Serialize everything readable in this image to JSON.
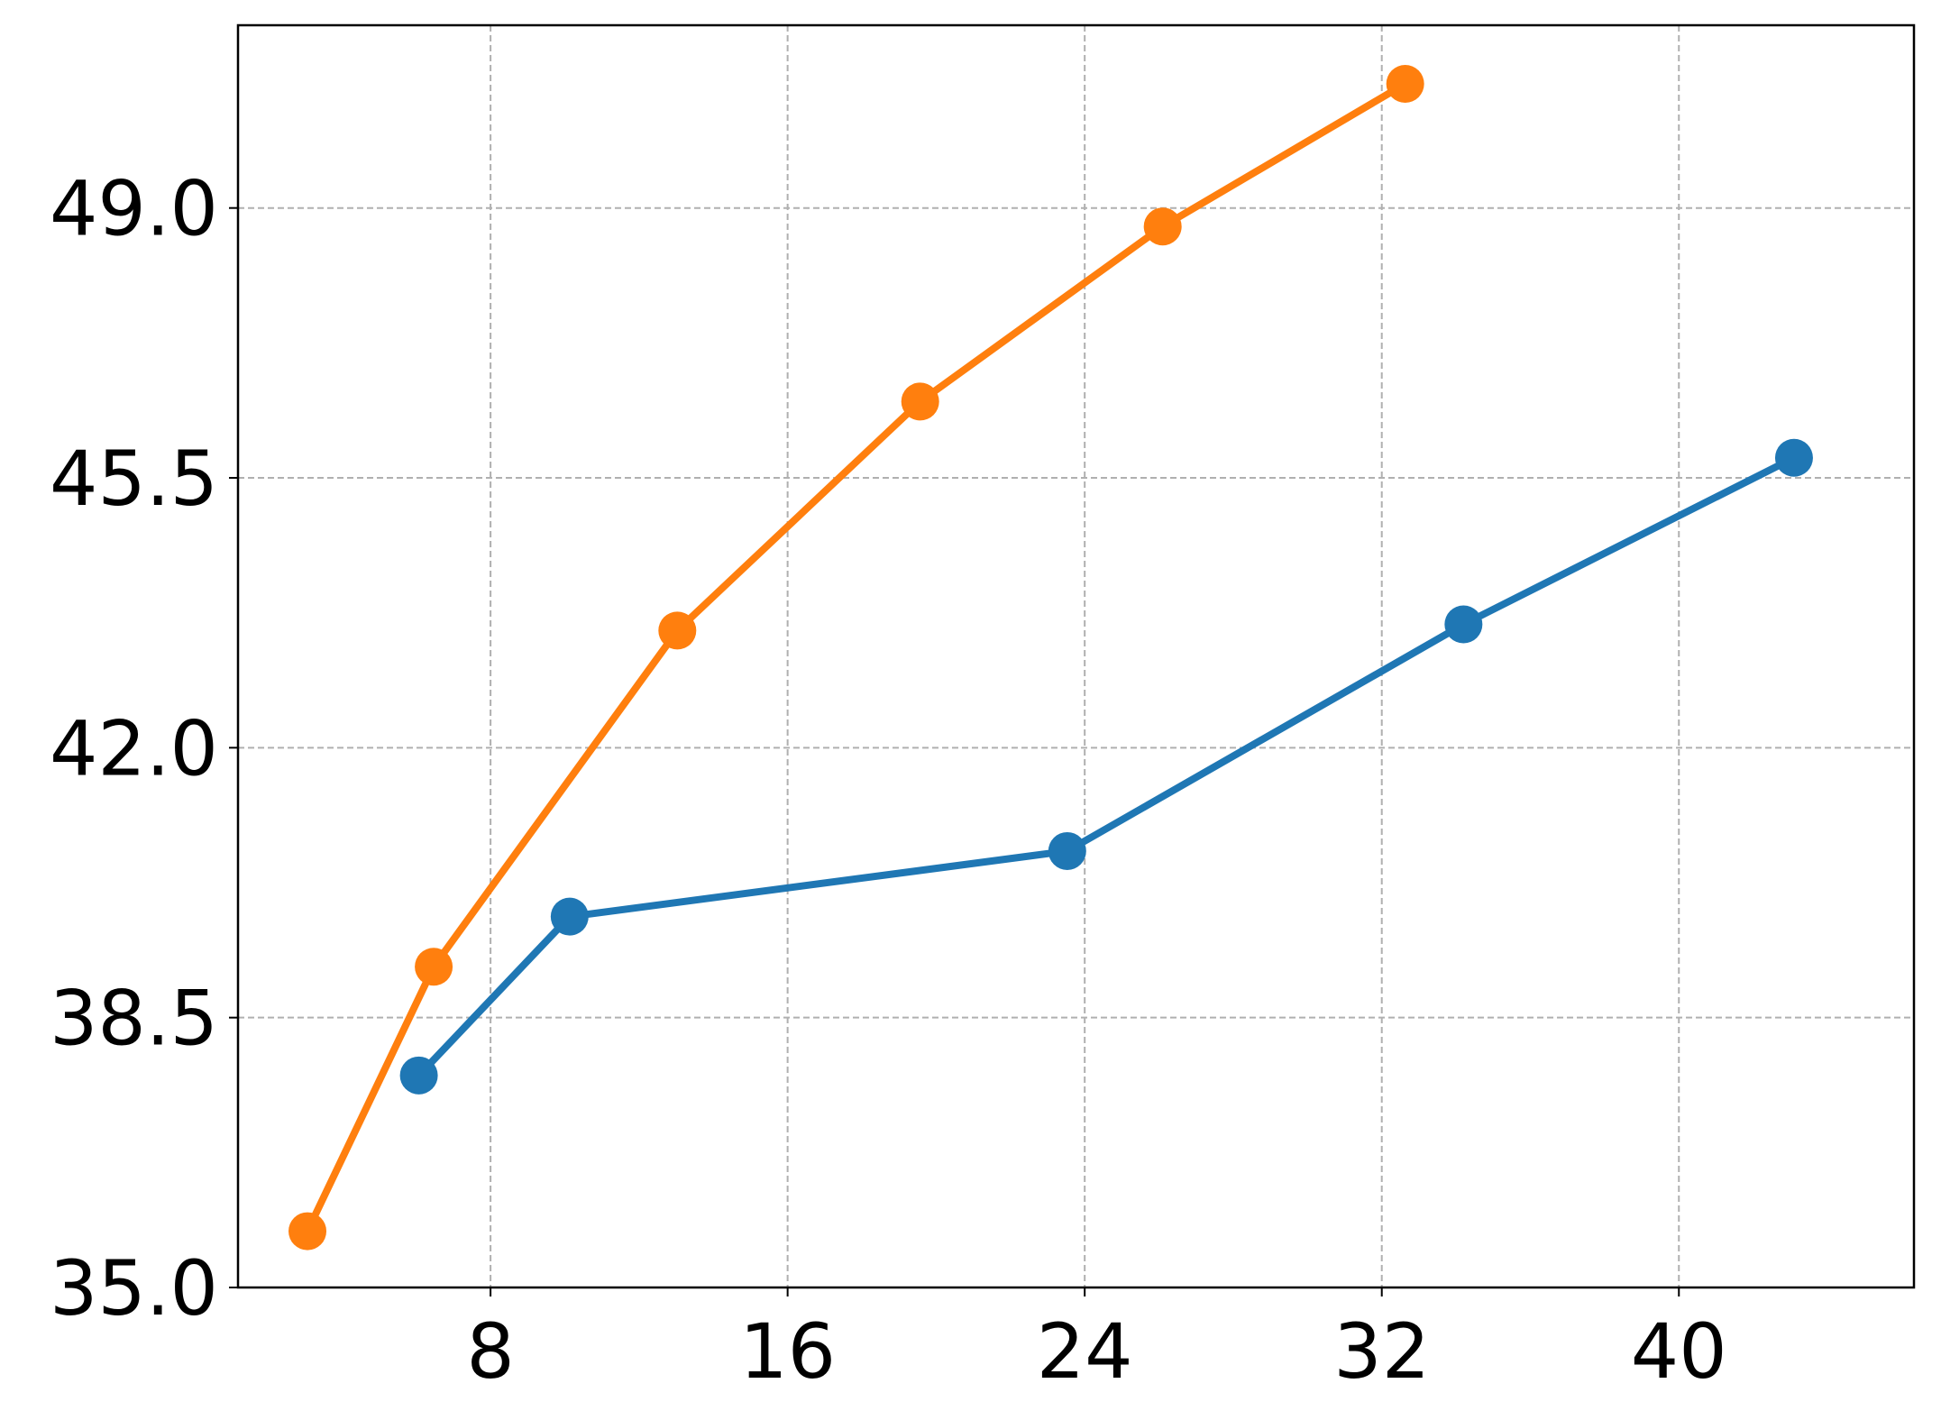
{
  "chart_data": {
    "type": "line",
    "series": [
      {
        "color": "#1f77b4",
        "x": [
          6.07,
          10.13,
          23.53,
          34.2,
          43.1
        ],
        "values": [
          37.75,
          39.81,
          40.66,
          43.6,
          45.76
        ]
      },
      {
        "color": "#ff7f0e",
        "x": [
          3.07,
          6.47,
          13.03,
          19.57,
          26.1,
          32.63
        ],
        "values": [
          35.73,
          39.16,
          43.52,
          46.49,
          48.76,
          50.61
        ]
      }
    ],
    "xlim": [
      1.2,
      46.33
    ],
    "xticks": [
      8,
      16,
      24,
      32,
      40
    ],
    "ylim": [
      35.0,
      51.37
    ],
    "yticks": [
      {
        "value": 35.0,
        "label": "35.0"
      },
      {
        "value": 38.5,
        "label": "38.5"
      },
      {
        "value": 42.0,
        "label": "42.0"
      },
      {
        "value": 45.5,
        "label": "45.5"
      },
      {
        "value": 49.0,
        "label": "49.0"
      }
    ],
    "grid": true
  }
}
